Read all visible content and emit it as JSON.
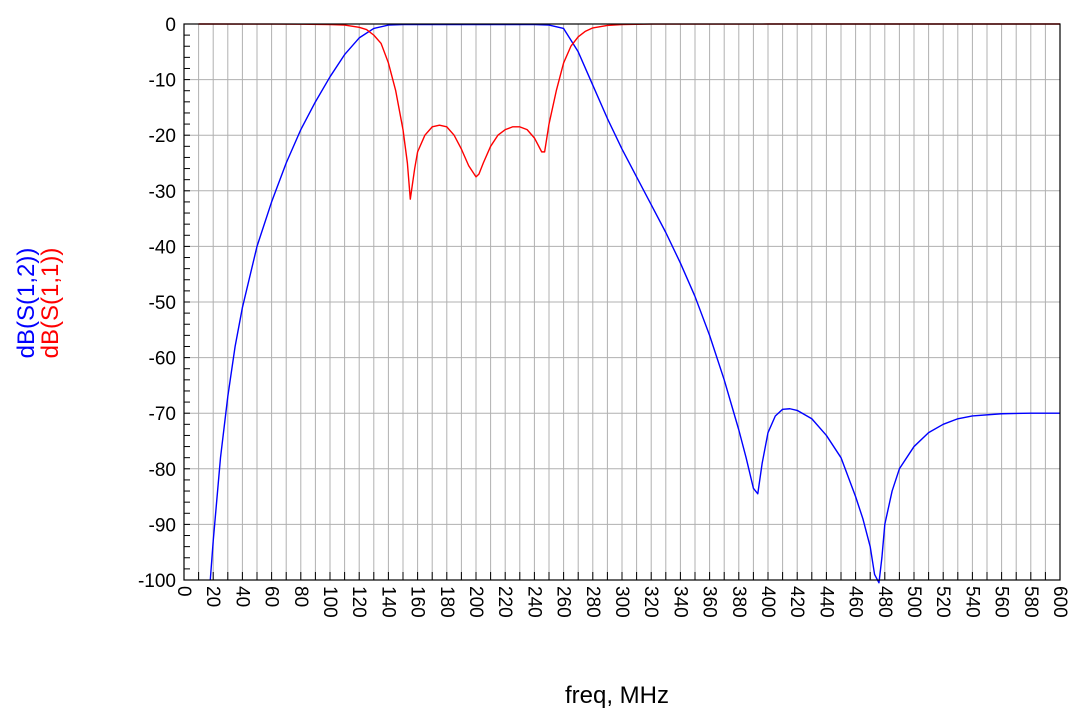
{
  "chart_data": {
    "type": "line",
    "xlabel": "freq, MHz",
    "ylabel_lines": [
      {
        "text": "dB(S(1,2))",
        "color": "#0000ff"
      },
      {
        "text": "dB(S(1,1))",
        "color": "#ff0000"
      }
    ],
    "xlim": [
      0,
      600
    ],
    "ylim": [
      -100,
      0
    ],
    "x_ticks": [
      0,
      20,
      40,
      60,
      80,
      100,
      120,
      140,
      160,
      180,
      200,
      220,
      240,
      260,
      280,
      300,
      320,
      340,
      360,
      380,
      400,
      420,
      440,
      460,
      480,
      500,
      520,
      540,
      560,
      580,
      600
    ],
    "x_tick_labels": [
      "0",
      "20",
      "40",
      "60",
      "80",
      "100",
      "120",
      "140",
      "160",
      "180",
      "200",
      "220",
      "240",
      "260",
      "280",
      "300",
      "320",
      "340",
      "360",
      "380",
      "400",
      "420",
      "440",
      "460",
      "480",
      "500",
      "520",
      "540",
      "560",
      "580",
      "600"
    ],
    "y_ticks": [
      0,
      -10,
      -20,
      -30,
      -40,
      -50,
      -60,
      -70,
      -80,
      -90,
      -100
    ],
    "y_tick_labels": [
      "0",
      "-10",
      "-20",
      "-30",
      "-40",
      "-50",
      "-60",
      "-70",
      "-80",
      "-90",
      "-100"
    ],
    "grid": true,
    "series": [
      {
        "name": "dB(S(1,2))",
        "color": "#0000ff",
        "x": [
          18,
          20,
          25,
          30,
          35,
          40,
          50,
          60,
          70,
          80,
          90,
          100,
          110,
          120,
          130,
          140,
          150,
          160,
          170,
          180,
          190,
          200,
          210,
          220,
          230,
          240,
          250,
          260,
          270,
          280,
          290,
          300,
          310,
          320,
          330,
          340,
          350,
          360,
          370,
          380,
          385,
          390,
          393,
          396,
          400,
          405,
          410,
          415,
          420,
          430,
          440,
          450,
          460,
          465,
          470,
          473,
          476,
          478,
          480,
          485,
          490,
          500,
          510,
          520,
          530,
          540,
          560,
          580,
          600
        ],
        "y": [
          -100,
          -93,
          -78,
          -67,
          -58,
          -51,
          -40,
          -32,
          -25,
          -19,
          -14,
          -9.5,
          -5.5,
          -2.5,
          -0.8,
          -0.2,
          -0.1,
          -0.1,
          -0.1,
          -0.1,
          -0.1,
          -0.1,
          -0.1,
          -0.1,
          -0.1,
          -0.1,
          -0.2,
          -0.8,
          -5,
          -11,
          -17,
          -22.5,
          -27.5,
          -32.5,
          -37.5,
          -43,
          -49,
          -56,
          -64,
          -73,
          -78,
          -83.5,
          -84.5,
          -79,
          -73.5,
          -70.5,
          -69.3,
          -69.2,
          -69.5,
          -71,
          -74,
          -78,
          -85,
          -89,
          -94,
          -99,
          -100.5,
          -96,
          -90,
          -84,
          -80,
          -76,
          -73.5,
          -72,
          -71,
          -70.5,
          -70.1,
          -70,
          -70
        ]
      },
      {
        "name": "dB(S(1,1))",
        "color": "#ff0000",
        "x": [
          10,
          60,
          80,
          100,
          110,
          120,
          125,
          130,
          135,
          140,
          145,
          150,
          153,
          155,
          158,
          160,
          165,
          170,
          175,
          180,
          185,
          190,
          195,
          200,
          202,
          205,
          210,
          215,
          220,
          225,
          230,
          235,
          240,
          245,
          247,
          250,
          255,
          260,
          265,
          270,
          275,
          280,
          290,
          300,
          310,
          320,
          340,
          400,
          500,
          600
        ],
        "y": [
          -0.001,
          -0.01,
          -0.03,
          -0.1,
          -0.2,
          -0.6,
          -1,
          -2,
          -3.5,
          -7,
          -12,
          -19,
          -25,
          -31.5,
          -26,
          -23,
          -20,
          -18.5,
          -18.2,
          -18.5,
          -20,
          -22.5,
          -25.5,
          -27.5,
          -27,
          -25,
          -22,
          -20,
          -19,
          -18.5,
          -18.5,
          -19,
          -20.5,
          -23,
          -23,
          -18,
          -12,
          -7,
          -4,
          -2.3,
          -1.3,
          -0.7,
          -0.25,
          -0.1,
          -0.05,
          -0.02,
          -0.01,
          -0.002,
          -0.001,
          -0.0005
        ]
      }
    ]
  }
}
